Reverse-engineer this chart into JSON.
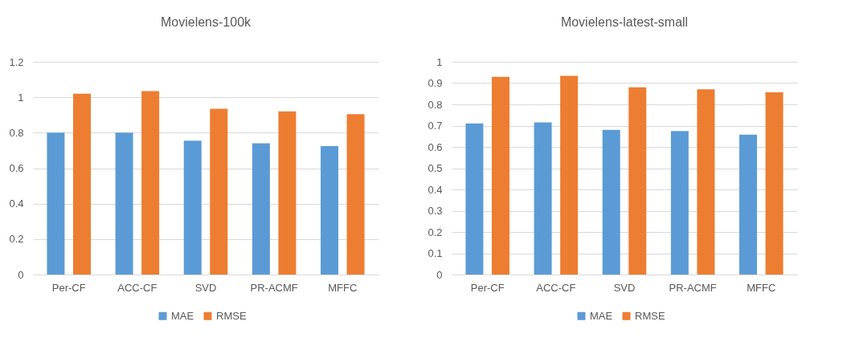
{
  "chart_data": [
    {
      "type": "bar",
      "title": "Movielens-100k",
      "categories": [
        "Per-CF",
        "ACC-CF",
        "SVD",
        "PR-ACMF",
        "MFFC"
      ],
      "series": [
        {
          "name": "MAE",
          "color": "#5b9bd5",
          "values": [
            0.8,
            0.8,
            0.755,
            0.74,
            0.725
          ]
        },
        {
          "name": "RMSE",
          "color": "#ed7d31",
          "values": [
            1.02,
            1.035,
            0.935,
            0.92,
            0.905
          ]
        }
      ],
      "ylim": [
        0,
        1.2
      ],
      "yticks": [
        0,
        0.2,
        0.4,
        0.6,
        0.8,
        1,
        1.2
      ],
      "grid": "y",
      "legend": "bottom"
    },
    {
      "type": "bar",
      "title": "Movielens-latest-small",
      "categories": [
        "Per-CF",
        "ACC-CF",
        "SVD",
        "PR-ACMF",
        "MFFC"
      ],
      "series": [
        {
          "name": "MAE",
          "color": "#5b9bd5",
          "values": [
            0.71,
            0.715,
            0.68,
            0.675,
            0.658
          ]
        },
        {
          "name": "RMSE",
          "color": "#ed7d31",
          "values": [
            0.929,
            0.934,
            0.88,
            0.871,
            0.857
          ]
        }
      ],
      "ylim": [
        0,
        1
      ],
      "yticks": [
        0,
        0.1,
        0.2,
        0.3,
        0.4,
        0.5,
        0.6,
        0.7,
        0.8,
        0.9,
        1
      ],
      "grid": "y",
      "legend": "bottom"
    }
  ]
}
